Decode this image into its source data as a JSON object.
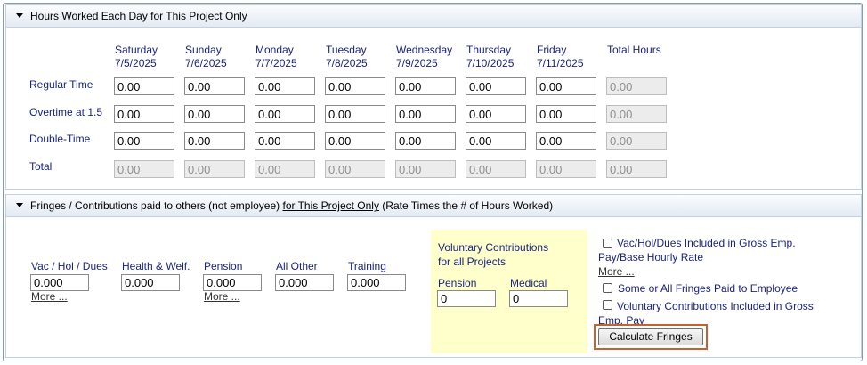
{
  "hours_section": {
    "title": "Hours Worked Each Day for This Project Only",
    "days": [
      {
        "name": "Saturday",
        "date": "7/5/2025"
      },
      {
        "name": "Sunday",
        "date": "7/6/2025"
      },
      {
        "name": "Monday",
        "date": "7/7/2025"
      },
      {
        "name": "Tuesday",
        "date": "7/8/2025"
      },
      {
        "name": "Wednesday",
        "date": "7/9/2025"
      },
      {
        "name": "Thursday",
        "date": "7/10/2025"
      },
      {
        "name": "Friday",
        "date": "7/11/2025"
      }
    ],
    "total_header": "Total Hours",
    "rows": [
      {
        "label": "Regular Time",
        "values": [
          "0.00",
          "0.00",
          "0.00",
          "0.00",
          "0.00",
          "0.00",
          "0.00"
        ],
        "total": "0.00"
      },
      {
        "label": "Overtime at 1.5",
        "values": [
          "0.00",
          "0.00",
          "0.00",
          "0.00",
          "0.00",
          "0.00",
          "0.00"
        ],
        "total": "0.00"
      },
      {
        "label": "Double-Time",
        "values": [
          "0.00",
          "0.00",
          "0.00",
          "0.00",
          "0.00",
          "0.00",
          "0.00"
        ],
        "total": "0.00"
      },
      {
        "label": "Total",
        "values": [
          "0.00",
          "0.00",
          "0.00",
          "0.00",
          "0.00",
          "0.00",
          "0.00"
        ],
        "total": "0.00"
      }
    ]
  },
  "fringes_section": {
    "title_part1": "Fringes / Contributions paid to others (not employee) ",
    "title_underlined": "for This Project Only",
    "title_part2": " (Rate Times the # of Hours Worked)",
    "fields": [
      {
        "label": "Vac / Hol / Dues",
        "value": "0.000",
        "more": "More ..."
      },
      {
        "label": "Health & Welf.",
        "value": "0.000"
      },
      {
        "label": "Pension",
        "value": "0.000",
        "more": "More ..."
      },
      {
        "label": "All Other",
        "value": "0.000"
      },
      {
        "label": "Training",
        "value": "0.000"
      }
    ],
    "voluntary": {
      "title_line1": "Voluntary Contributions",
      "title_line2": "for all Projects",
      "pension_label": "Pension",
      "pension_value": "0",
      "medical_label": "Medical",
      "medical_value": "0"
    },
    "checkboxes": [
      {
        "label": "Vac/Hol/Dues Included in Gross Emp. Pay/Base Hourly Rate",
        "checked": false,
        "more": "More ..."
      },
      {
        "label": "Some or All Fringes Paid to Employee",
        "checked": false
      },
      {
        "label": "Voluntary Contributions Included in Gross Emp. Pay",
        "checked": false
      }
    ],
    "calculate_button": "Calculate Fringes"
  }
}
